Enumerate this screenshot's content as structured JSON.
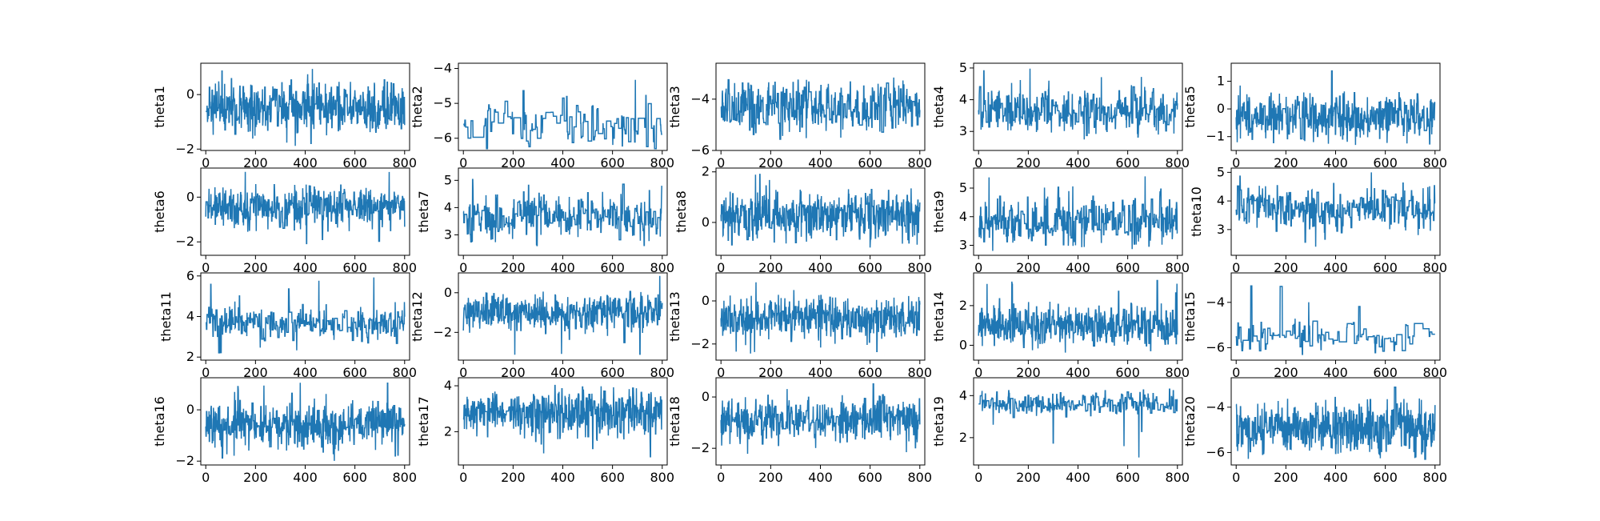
{
  "figure": {
    "background": "#ffffff"
  },
  "chart_data": [
    {
      "type": "line",
      "ylabel": "theta1",
      "xlim": [
        -20,
        820
      ],
      "ylim": [
        -2.05,
        1.15
      ],
      "yticks": [
        -2,
        0
      ],
      "xticks": [
        0,
        200,
        400,
        600,
        800
      ],
      "center": -0.45,
      "spread": 0.55,
      "lo": -2.0,
      "hi": 1.05,
      "sticky": 0.35,
      "color": "#1f77b4"
    },
    {
      "type": "line",
      "ylabel": "theta2",
      "xlim": [
        -20,
        820
      ],
      "ylim": [
        -6.35,
        -3.85
      ],
      "yticks": [
        -6,
        -5,
        -4
      ],
      "xticks": [
        0,
        200,
        400,
        600,
        800
      ],
      "center": -5.6,
      "spread": 0.45,
      "lo": -6.3,
      "hi": -4.05,
      "sticky": 0.85,
      "color": "#1f77b4"
    },
    {
      "type": "line",
      "ylabel": "theta3",
      "xlim": [
        -20,
        820
      ],
      "ylim": [
        -6.0,
        -2.6
      ],
      "yticks": [
        -6,
        -4
      ],
      "xticks": [
        0,
        200,
        400,
        600,
        800
      ],
      "center": -4.3,
      "spread": 0.6,
      "lo": -5.6,
      "hi": -2.8,
      "sticky": 0.5,
      "color": "#1f77b4"
    },
    {
      "type": "line",
      "ylabel": "theta4",
      "xlim": [
        -20,
        820
      ],
      "ylim": [
        2.4,
        5.15
      ],
      "yticks": [
        3,
        4,
        5
      ],
      "xticks": [
        0,
        200,
        400,
        600,
        800
      ],
      "center": 3.65,
      "spread": 0.45,
      "lo": 2.6,
      "hi": 5.0,
      "sticky": 0.55,
      "color": "#1f77b4"
    },
    {
      "type": "line",
      "ylabel": "theta5",
      "xlim": [
        -20,
        820
      ],
      "ylim": [
        -1.5,
        1.65
      ],
      "yticks": [
        -1,
        0,
        1
      ],
      "xticks": [
        0,
        200,
        400,
        600,
        800
      ],
      "center": -0.3,
      "spread": 0.5,
      "lo": -1.3,
      "hi": 1.5,
      "sticky": 0.35,
      "color": "#1f77b4"
    },
    {
      "type": "line",
      "ylabel": "theta6",
      "xlim": [
        -20,
        820
      ],
      "ylim": [
        -2.6,
        1.3
      ],
      "yticks": [
        -2,
        0
      ],
      "xticks": [
        0,
        200,
        400,
        600,
        800
      ],
      "center": -0.45,
      "spread": 0.55,
      "lo": -2.3,
      "hi": 1.15,
      "sticky": 0.35,
      "color": "#1f77b4"
    },
    {
      "type": "line",
      "ylabel": "theta7",
      "xlim": [
        -20,
        820
      ],
      "ylim": [
        2.25,
        5.45
      ],
      "yticks": [
        3,
        4,
        5
      ],
      "xticks": [
        0,
        200,
        400,
        600,
        800
      ],
      "center": 3.65,
      "spread": 0.5,
      "lo": 2.4,
      "hi": 5.25,
      "sticky": 0.55,
      "color": "#1f77b4"
    },
    {
      "type": "line",
      "ylabel": "theta8",
      "xlim": [
        -20,
        820
      ],
      "ylim": [
        -1.3,
        2.15
      ],
      "yticks": [
        0,
        2
      ],
      "xticks": [
        0,
        200,
        400,
        600,
        800
      ],
      "center": 0.3,
      "spread": 0.55,
      "lo": -1.2,
      "hi": 2.0,
      "sticky": 0.35,
      "color": "#1f77b4"
    },
    {
      "type": "line",
      "ylabel": "theta9",
      "xlim": [
        -20,
        820
      ],
      "ylim": [
        2.65,
        5.7
      ],
      "yticks": [
        3,
        4,
        5
      ],
      "xticks": [
        0,
        200,
        400,
        600,
        800
      ],
      "center": 3.8,
      "spread": 0.5,
      "lo": 2.8,
      "hi": 5.5,
      "sticky": 0.55,
      "color": "#1f77b4"
    },
    {
      "type": "line",
      "ylabel": "theta10",
      "xlim": [
        -20,
        820
      ],
      "ylim": [
        2.1,
        5.15
      ],
      "yticks": [
        3,
        4,
        5
      ],
      "xticks": [
        0,
        200,
        400,
        600,
        800
      ],
      "center": 3.7,
      "spread": 0.45,
      "lo": 2.3,
      "hi": 5.0,
      "sticky": 0.55,
      "color": "#1f77b4"
    },
    {
      "type": "line",
      "ylabel": "theta11",
      "xlim": [
        -20,
        820
      ],
      "ylim": [
        1.85,
        6.15
      ],
      "yticks": [
        2,
        4,
        6
      ],
      "xticks": [
        0,
        200,
        400,
        600,
        800
      ],
      "center": 3.7,
      "spread": 0.5,
      "lo": 2.1,
      "hi": 6.0,
      "sticky": 0.6,
      "color": "#1f77b4"
    },
    {
      "type": "line",
      "ylabel": "theta12",
      "xlim": [
        -20,
        820
      ],
      "ylim": [
        -3.4,
        1.0
      ],
      "yticks": [
        -2,
        0
      ],
      "xticks": [
        0,
        200,
        400,
        600,
        800
      ],
      "center": -1.0,
      "spread": 0.55,
      "lo": -3.2,
      "hi": 0.85,
      "sticky": 0.35,
      "color": "#1f77b4"
    },
    {
      "type": "line",
      "ylabel": "theta13",
      "xlim": [
        -20,
        820
      ],
      "ylim": [
        -2.75,
        1.3
      ],
      "yticks": [
        -2,
        0
      ],
      "xticks": [
        0,
        200,
        400,
        600,
        800
      ],
      "center": -0.8,
      "spread": 0.55,
      "lo": -2.5,
      "hi": 1.1,
      "sticky": 0.35,
      "color": "#1f77b4"
    },
    {
      "type": "line",
      "ylabel": "theta14",
      "xlim": [
        -20,
        820
      ],
      "ylim": [
        -0.75,
        3.65
      ],
      "yticks": [
        0,
        2
      ],
      "xticks": [
        0,
        200,
        400,
        600,
        800
      ],
      "center": 1.0,
      "spread": 0.6,
      "lo": -0.5,
      "hi": 3.4,
      "sticky": 0.35,
      "color": "#1f77b4"
    },
    {
      "type": "line",
      "ylabel": "theta15",
      "xlim": [
        -20,
        820
      ],
      "ylim": [
        -6.55,
        -2.7
      ],
      "yticks": [
        -6,
        -4
      ],
      "xticks": [
        0,
        200,
        400,
        600,
        800
      ],
      "center": -5.55,
      "spread": 0.45,
      "lo": -6.3,
      "hi": -3.0,
      "sticky": 0.85,
      "color": "#1f77b4"
    },
    {
      "type": "line",
      "ylabel": "theta16",
      "xlim": [
        -20,
        820
      ],
      "ylim": [
        -2.15,
        1.25
      ],
      "yticks": [
        -2,
        0
      ],
      "xticks": [
        0,
        200,
        400,
        600,
        800
      ],
      "center": -0.6,
      "spread": 0.5,
      "lo": -2.0,
      "hi": 1.1,
      "sticky": 0.35,
      "color": "#1f77b4"
    },
    {
      "type": "line",
      "ylabel": "theta17",
      "xlim": [
        -20,
        820
      ],
      "ylim": [
        0.55,
        4.35
      ],
      "yticks": [
        2,
        4
      ],
      "xticks": [
        0,
        200,
        400,
        600,
        800
      ],
      "center": 2.8,
      "spread": 0.6,
      "lo": 0.8,
      "hi": 4.2,
      "sticky": 0.35,
      "color": "#1f77b4"
    },
    {
      "type": "line",
      "ylabel": "theta18",
      "xlim": [
        -20,
        820
      ],
      "ylim": [
        -2.65,
        0.75
      ],
      "yticks": [
        -2,
        0
      ],
      "xticks": [
        0,
        200,
        400,
        600,
        800
      ],
      "center": -0.9,
      "spread": 0.5,
      "lo": -2.4,
      "hi": 0.55,
      "sticky": 0.35,
      "color": "#1f77b4"
    },
    {
      "type": "line",
      "ylabel": "theta19",
      "xlim": [
        -20,
        820
      ],
      "ylim": [
        0.7,
        4.85
      ],
      "yticks": [
        2,
        4
      ],
      "xticks": [
        0,
        200,
        400,
        600,
        800
      ],
      "center": 3.6,
      "spread": 0.35,
      "lo": 1.0,
      "hi": 4.6,
      "sticky": 0.6,
      "color": "#1f77b4"
    },
    {
      "type": "line",
      "ylabel": "theta20",
      "xlim": [
        -20,
        820
      ],
      "ylim": [
        -6.55,
        -2.7
      ],
      "yticks": [
        -6,
        -4
      ],
      "xticks": [
        0,
        200,
        400,
        600,
        800
      ],
      "center": -4.9,
      "spread": 0.7,
      "lo": -6.3,
      "hi": -3.0,
      "sticky": 0.3,
      "color": "#1f77b4"
    }
  ]
}
